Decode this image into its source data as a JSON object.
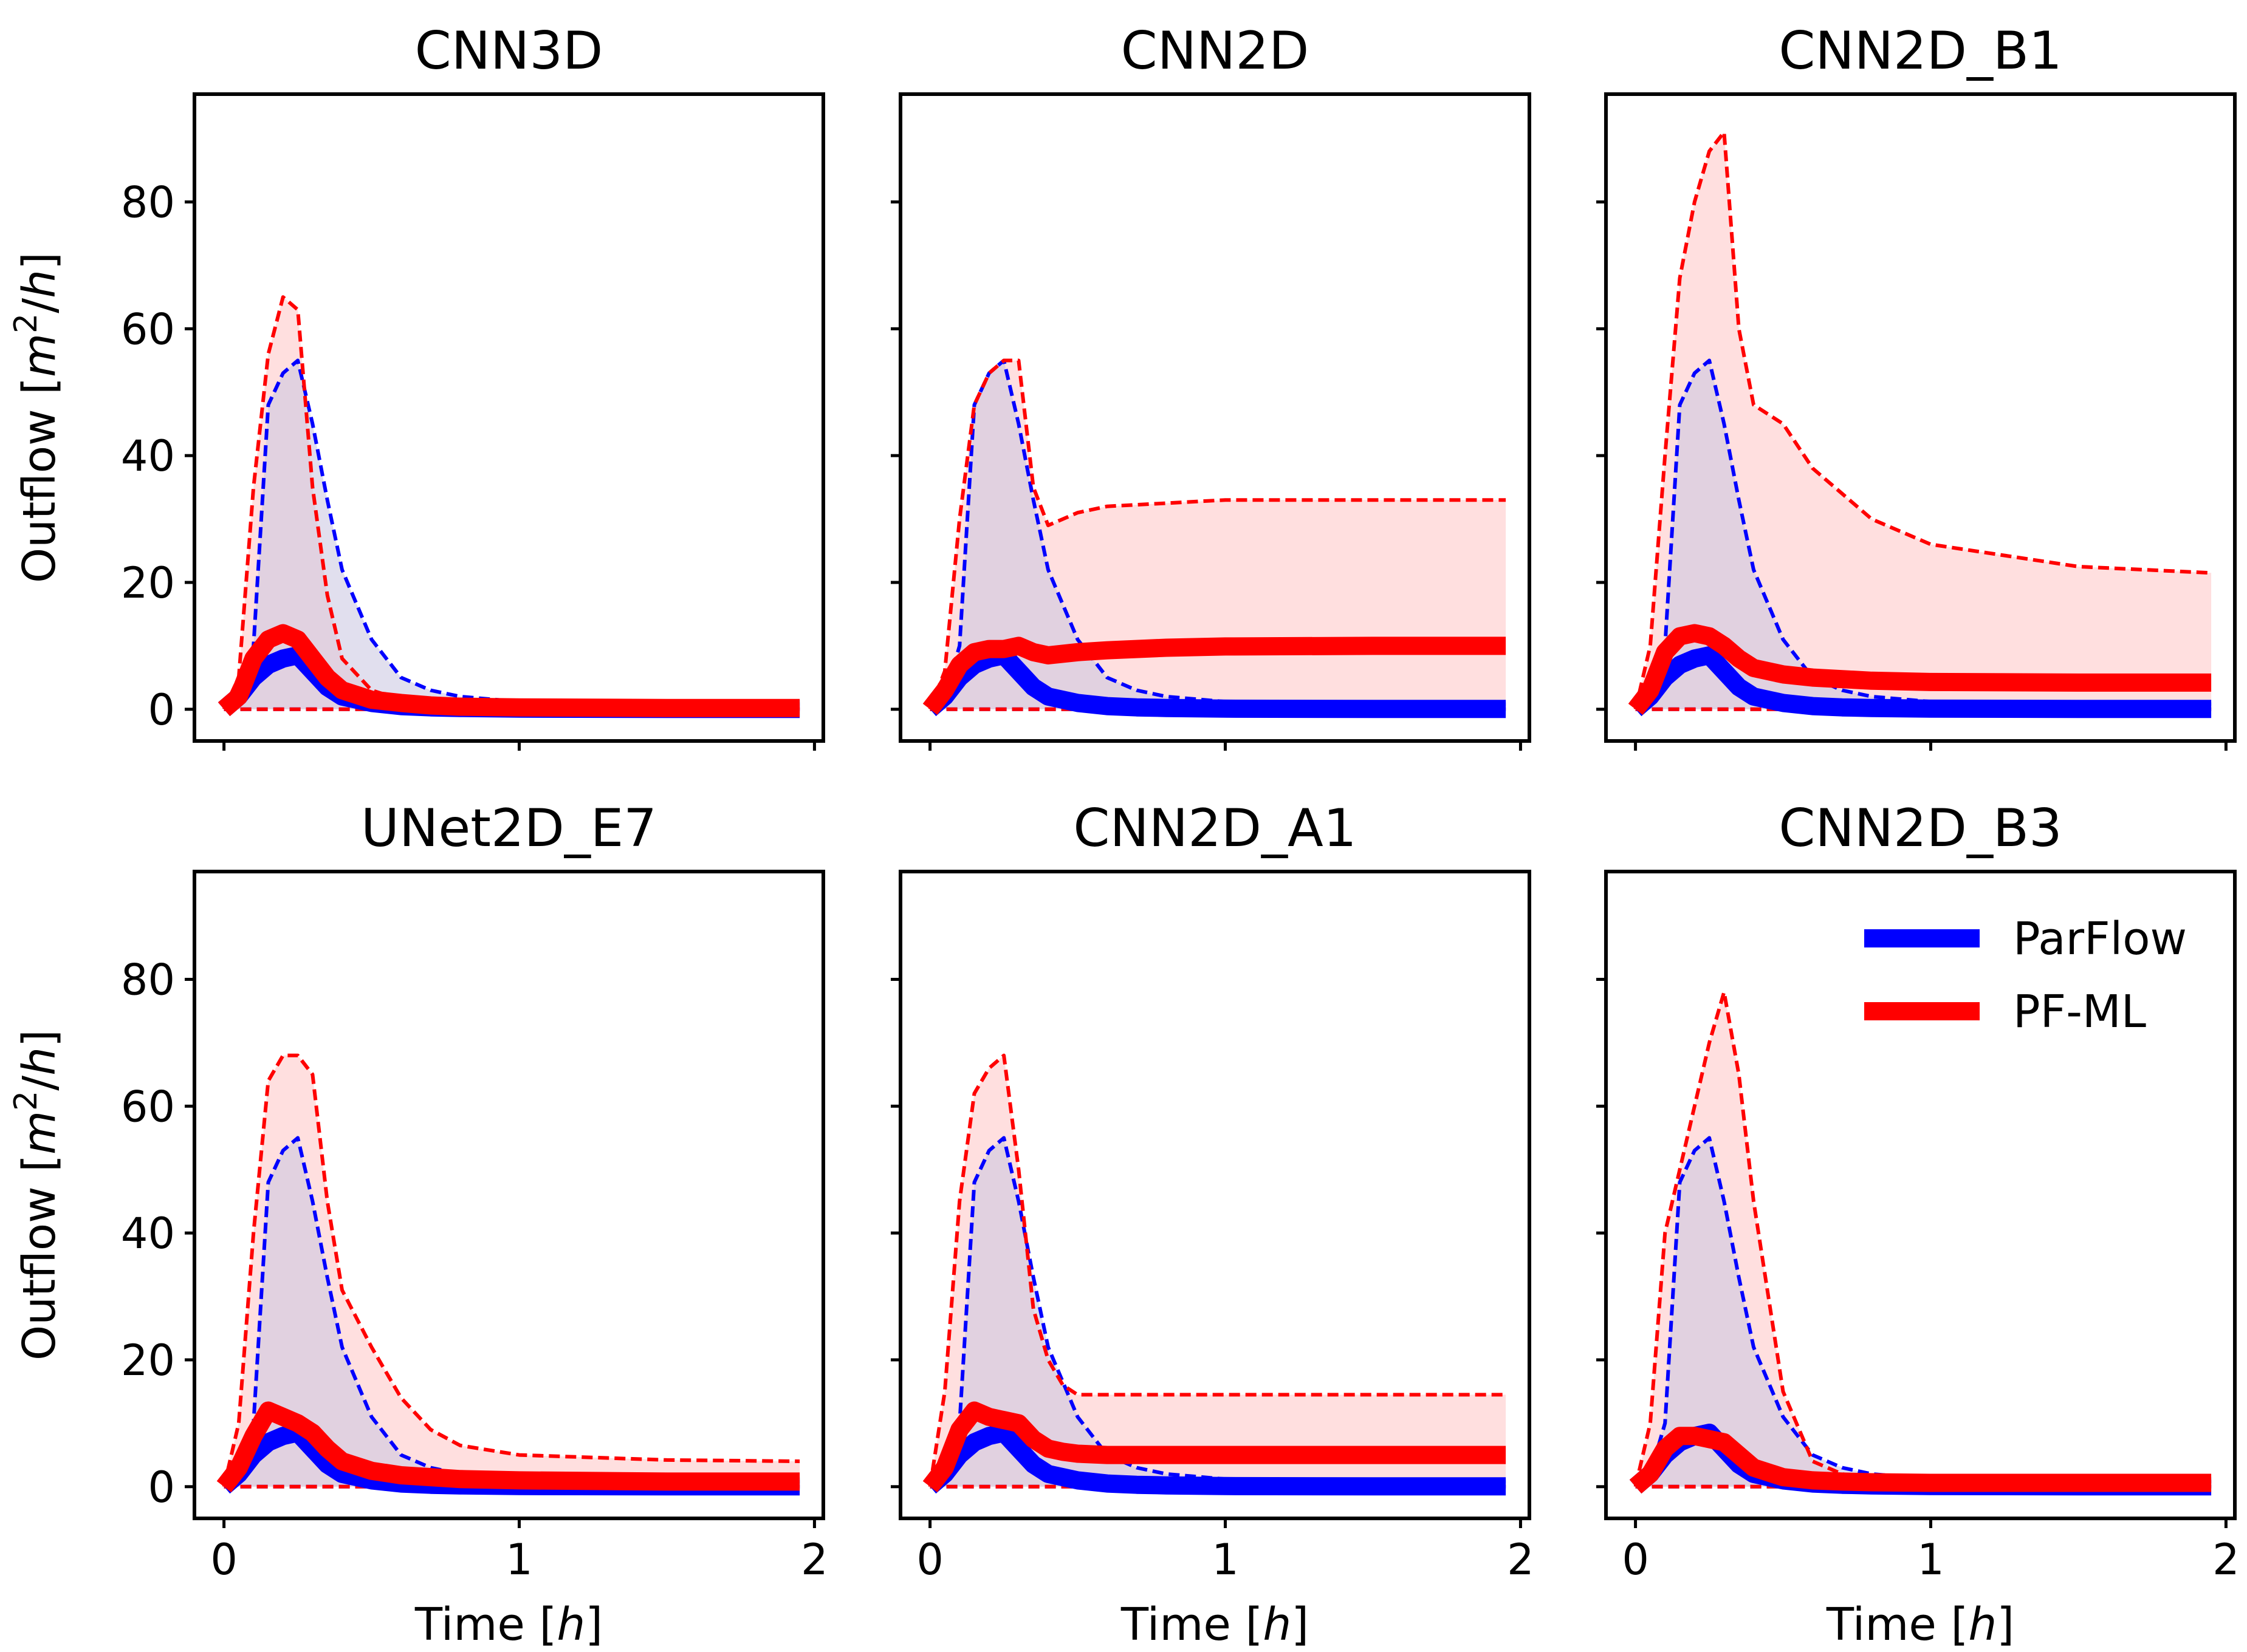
{
  "figure": {
    "xlabel_prefix": "Time [",
    "xlabel_var": "h",
    "xlabel_suffix": "]",
    "ylabel_prefix": "Outflow [",
    "ylabel_var": "m",
    "ylabel_exp": "2",
    "ylabel_mid": "/",
    "ylabel_var2": "h",
    "ylabel_suffix": "]",
    "legend": [
      {
        "label": "ParFlow",
        "color": "#0000ff"
      },
      {
        "label": "PF-ML",
        "color": "#ff0000"
      }
    ],
    "colors": {
      "parflow": "#0000ff",
      "pfml": "#ff0000",
      "band_parflow": "#c9c4e0",
      "band_pfml": "#ffd9d9"
    }
  },
  "chart_data": [
    {
      "type": "line",
      "title": "CNN3D",
      "xlabel": "Time [h]",
      "ylabel": "Outflow [m2/h]",
      "xlim": [
        -0.1,
        2.03
      ],
      "ylim": [
        -5,
        97
      ],
      "xticks": [
        0,
        1,
        2
      ],
      "yticks": [
        0,
        20,
        40,
        60,
        80
      ],
      "series": [
        {
          "name": "ParFlow",
          "x": [
            0,
            0.05,
            0.1,
            0.15,
            0.2,
            0.25,
            0.3,
            0.35,
            0.4,
            0.5,
            0.6,
            0.7,
            0.8,
            1.0,
            1.5,
            1.95
          ],
          "mean": [
            0,
            2,
            5,
            7,
            8,
            8.5,
            6,
            3.5,
            2,
            1,
            0.5,
            0.3,
            0.2,
            0.1,
            0.05,
            0.05
          ],
          "lower": [
            0,
            0,
            0,
            0,
            0,
            0,
            0,
            0,
            0,
            0,
            0,
            0,
            0,
            0,
            0,
            0
          ],
          "upper": [
            0,
            2,
            10,
            48,
            53,
            55,
            45,
            33,
            22,
            11,
            5,
            3,
            2,
            1.2,
            0.8,
            0.8
          ]
        },
        {
          "name": "PF-ML",
          "x": [
            0,
            0.05,
            0.1,
            0.15,
            0.2,
            0.25,
            0.3,
            0.35,
            0.4,
            0.5,
            0.6,
            0.7,
            0.8,
            1.0,
            1.5,
            1.95
          ],
          "mean": [
            0,
            2,
            8,
            11,
            12,
            11,
            8,
            5,
            3,
            1.5,
            1,
            0.6,
            0.4,
            0.3,
            0.2,
            0.2
          ],
          "lower": [
            0,
            0,
            0,
            0,
            0,
            0,
            0,
            0,
            0,
            0,
            0,
            0,
            0,
            0,
            0,
            0
          ],
          "upper": [
            0,
            5,
            35,
            56,
            65,
            63,
            35,
            18,
            8,
            3,
            1.5,
            1,
            0.5,
            0.3,
            0.2,
            0.2
          ]
        }
      ]
    },
    {
      "type": "line",
      "title": "CNN2D",
      "xlabel": "Time [h]",
      "ylabel": "Outflow [m2/h]",
      "xlim": [
        -0.1,
        2.03
      ],
      "ylim": [
        -5,
        97
      ],
      "xticks": [
        0,
        1,
        2
      ],
      "yticks": [
        0,
        20,
        40,
        60,
        80
      ],
      "series": [
        {
          "name": "ParFlow",
          "x": [
            0,
            0.05,
            0.1,
            0.15,
            0.2,
            0.25,
            0.3,
            0.35,
            0.4,
            0.5,
            0.6,
            0.7,
            0.8,
            1.0,
            1.5,
            1.95
          ],
          "mean": [
            0,
            2,
            5,
            7,
            8,
            8.5,
            6,
            3.5,
            2,
            1,
            0.5,
            0.3,
            0.2,
            0.1,
            0.05,
            0.05
          ],
          "lower": [
            0,
            0,
            0,
            0,
            0,
            0,
            0,
            0,
            0,
            0,
            0,
            0,
            0,
            0,
            0,
            0
          ],
          "upper": [
            0,
            2,
            10,
            48,
            53,
            55,
            45,
            33,
            22,
            11,
            5,
            3,
            2,
            1.2,
            0.8,
            0.8
          ]
        },
        {
          "name": "PF-ML",
          "x": [
            0,
            0.05,
            0.1,
            0.15,
            0.2,
            0.25,
            0.3,
            0.35,
            0.4,
            0.5,
            0.6,
            0.8,
            1.0,
            1.5,
            1.95
          ],
          "mean": [
            0,
            3,
            7,
            9,
            9.5,
            9.5,
            10,
            9,
            8.5,
            9,
            9.3,
            9.7,
            9.9,
            10,
            10
          ],
          "lower": [
            0,
            0,
            0,
            0,
            0,
            0,
            0,
            0,
            0,
            0,
            0,
            0,
            0,
            0,
            0
          ],
          "upper": [
            0,
            6,
            30,
            48,
            53,
            55,
            55,
            35,
            29,
            31,
            32,
            32.5,
            33,
            33,
            33
          ]
        }
      ]
    },
    {
      "type": "line",
      "title": "CNN2D_B1",
      "xlabel": "Time [h]",
      "ylabel": "Outflow [m2/h]",
      "xlim": [
        -0.1,
        2.03
      ],
      "ylim": [
        -5,
        97
      ],
      "xticks": [
        0,
        1,
        2
      ],
      "yticks": [
        0,
        20,
        40,
        60,
        80
      ],
      "series": [
        {
          "name": "ParFlow",
          "x": [
            0,
            0.05,
            0.1,
            0.15,
            0.2,
            0.25,
            0.3,
            0.35,
            0.4,
            0.5,
            0.6,
            0.7,
            0.8,
            1.0,
            1.5,
            1.95
          ],
          "mean": [
            0,
            2,
            5,
            7,
            8,
            8.5,
            6,
            3.5,
            2,
            1,
            0.5,
            0.3,
            0.2,
            0.1,
            0.05,
            0.05
          ],
          "lower": [
            0,
            0,
            0,
            0,
            0,
            0,
            0,
            0,
            0,
            0,
            0,
            0,
            0,
            0,
            0,
            0
          ],
          "upper": [
            0,
            2,
            10,
            48,
            53,
            55,
            45,
            33,
            22,
            11,
            5,
            3,
            2,
            1.2,
            0.8,
            0.8
          ]
        },
        {
          "name": "PF-ML",
          "x": [
            0,
            0.05,
            0.1,
            0.15,
            0.2,
            0.25,
            0.3,
            0.35,
            0.4,
            0.5,
            0.6,
            0.8,
            1.0,
            1.5,
            1.95
          ],
          "mean": [
            0,
            3,
            9,
            11.5,
            12,
            11.5,
            10,
            8,
            6.5,
            5.5,
            5,
            4.5,
            4.3,
            4.2,
            4.2
          ],
          "lower": [
            0,
            0,
            0,
            0,
            0,
            0,
            0,
            0,
            0,
            0,
            0,
            0,
            0,
            0,
            0
          ],
          "upper": [
            0,
            10,
            40,
            68,
            80,
            88,
            91,
            60,
            48,
            45,
            38,
            30,
            26,
            22.5,
            21.5
          ]
        }
      ]
    },
    {
      "type": "line",
      "title": "UNet2D_E7",
      "xlabel": "Time [h]",
      "ylabel": "Outflow [m2/h]",
      "xlim": [
        -0.1,
        2.03
      ],
      "ylim": [
        -5,
        97
      ],
      "xticks": [
        0,
        1,
        2
      ],
      "yticks": [
        0,
        20,
        40,
        60,
        80
      ],
      "series": [
        {
          "name": "ParFlow",
          "x": [
            0,
            0.05,
            0.1,
            0.15,
            0.2,
            0.25,
            0.3,
            0.35,
            0.4,
            0.5,
            0.6,
            0.7,
            0.8,
            1.0,
            1.5,
            1.95
          ],
          "mean": [
            0,
            2,
            5,
            7,
            8,
            8.5,
            6,
            3.5,
            2,
            1,
            0.5,
            0.3,
            0.2,
            0.1,
            0.05,
            0.05
          ],
          "lower": [
            0,
            0,
            0,
            0,
            0,
            0,
            0,
            0,
            0,
            0,
            0,
            0,
            0,
            0,
            0,
            0
          ],
          "upper": [
            0,
            2,
            10,
            48,
            53,
            55,
            45,
            33,
            22,
            11,
            5,
            3,
            2,
            1.2,
            0.8,
            0.8
          ]
        },
        {
          "name": "PF-ML",
          "x": [
            0,
            0.05,
            0.1,
            0.15,
            0.2,
            0.25,
            0.3,
            0.35,
            0.4,
            0.5,
            0.6,
            0.7,
            0.8,
            1.0,
            1.5,
            1.95
          ],
          "mean": [
            0,
            3,
            8,
            12,
            11,
            10,
            8.5,
            6,
            4,
            2.5,
            1.8,
            1.5,
            1.2,
            1,
            0.8,
            0.8
          ],
          "lower": [
            0,
            0,
            0,
            0,
            0,
            0,
            0,
            0,
            0,
            0,
            0,
            0,
            0,
            0,
            0,
            0
          ],
          "upper": [
            0,
            10,
            40,
            64,
            68,
            68,
            65,
            45,
            31,
            22,
            14,
            9,
            6.5,
            5,
            4.2,
            4
          ]
        }
      ]
    },
    {
      "type": "line",
      "title": "CNN2D_A1",
      "xlabel": "Time [h]",
      "ylabel": "Outflow [m2/h]",
      "xlim": [
        -0.1,
        2.03
      ],
      "ylim": [
        -5,
        97
      ],
      "xticks": [
        0,
        1,
        2
      ],
      "yticks": [
        0,
        20,
        40,
        60,
        80
      ],
      "series": [
        {
          "name": "ParFlow",
          "x": [
            0,
            0.05,
            0.1,
            0.15,
            0.2,
            0.25,
            0.3,
            0.35,
            0.4,
            0.5,
            0.6,
            0.7,
            0.8,
            1.0,
            1.5,
            1.95
          ],
          "mean": [
            0,
            2,
            5,
            7,
            8,
            8.5,
            6,
            3.5,
            2,
            1,
            0.5,
            0.3,
            0.2,
            0.1,
            0.05,
            0.05
          ],
          "lower": [
            0,
            0,
            0,
            0,
            0,
            0,
            0,
            0,
            0,
            0,
            0,
            0,
            0,
            0,
            0,
            0
          ],
          "upper": [
            0,
            2,
            10,
            48,
            53,
            55,
            45,
            33,
            22,
            11,
            5,
            3,
            2,
            1.2,
            0.8,
            0.8
          ]
        },
        {
          "name": "PF-ML",
          "x": [
            0,
            0.05,
            0.1,
            0.15,
            0.2,
            0.25,
            0.3,
            0.35,
            0.4,
            0.45,
            0.5,
            0.6,
            0.8,
            1.0,
            1.5,
            1.95
          ],
          "mean": [
            0,
            3,
            9,
            12,
            11,
            10.5,
            10,
            7.5,
            6,
            5.5,
            5.2,
            5,
            5,
            5,
            5,
            5
          ],
          "lower": [
            0,
            0,
            0,
            0,
            0,
            0,
            0,
            0,
            0,
            0,
            0,
            0,
            0,
            0,
            0,
            0
          ],
          "upper": [
            0,
            15,
            45,
            62,
            66,
            68,
            50,
            28,
            20,
            16,
            14.5,
            14.5,
            14.5,
            14.5,
            14.5,
            14.5
          ]
        }
      ]
    },
    {
      "type": "line",
      "title": "CNN2D_B3",
      "xlabel": "Time [h]",
      "ylabel": "Outflow [m2/h]",
      "xlim": [
        -0.1,
        2.03
      ],
      "ylim": [
        -5,
        97
      ],
      "xticks": [
        0,
        1,
        2
      ],
      "yticks": [
        0,
        20,
        40,
        60,
        80
      ],
      "legend_loc": "upper right",
      "series": [
        {
          "name": "ParFlow",
          "x": [
            0,
            0.05,
            0.1,
            0.15,
            0.2,
            0.25,
            0.3,
            0.35,
            0.4,
            0.5,
            0.6,
            0.7,
            0.8,
            1.0,
            1.5,
            1.95
          ],
          "mean": [
            0,
            2,
            5,
            7,
            8,
            8.5,
            6,
            3.5,
            2,
            1,
            0.5,
            0.3,
            0.2,
            0.1,
            0.05,
            0.05
          ],
          "lower": [
            0,
            0,
            0,
            0,
            0,
            0,
            0,
            0,
            0,
            0,
            0,
            0,
            0,
            0,
            0,
            0
          ],
          "upper": [
            0,
            2,
            10,
            48,
            53,
            55,
            45,
            33,
            22,
            11,
            5,
            3,
            2,
            1.2,
            0.8,
            0.8
          ]
        },
        {
          "name": "PF-ML",
          "x": [
            0,
            0.05,
            0.1,
            0.15,
            0.2,
            0.25,
            0.3,
            0.35,
            0.4,
            0.5,
            0.6,
            0.7,
            0.8,
            1.0,
            1.5,
            1.95
          ],
          "mean": [
            0,
            2,
            6,
            8,
            8,
            7.5,
            7,
            5,
            3,
            1.5,
            1,
            0.8,
            0.7,
            0.6,
            0.6,
            0.6
          ],
          "lower": [
            0,
            0,
            0,
            0,
            0,
            0,
            0,
            0,
            0,
            0,
            0,
            0,
            0,
            0,
            0,
            0
          ],
          "upper": [
            0,
            10,
            40,
            50,
            60,
            70,
            78,
            65,
            45,
            15,
            4,
            2,
            1.2,
            1,
            0.8,
            0.8
          ]
        }
      ]
    }
  ]
}
